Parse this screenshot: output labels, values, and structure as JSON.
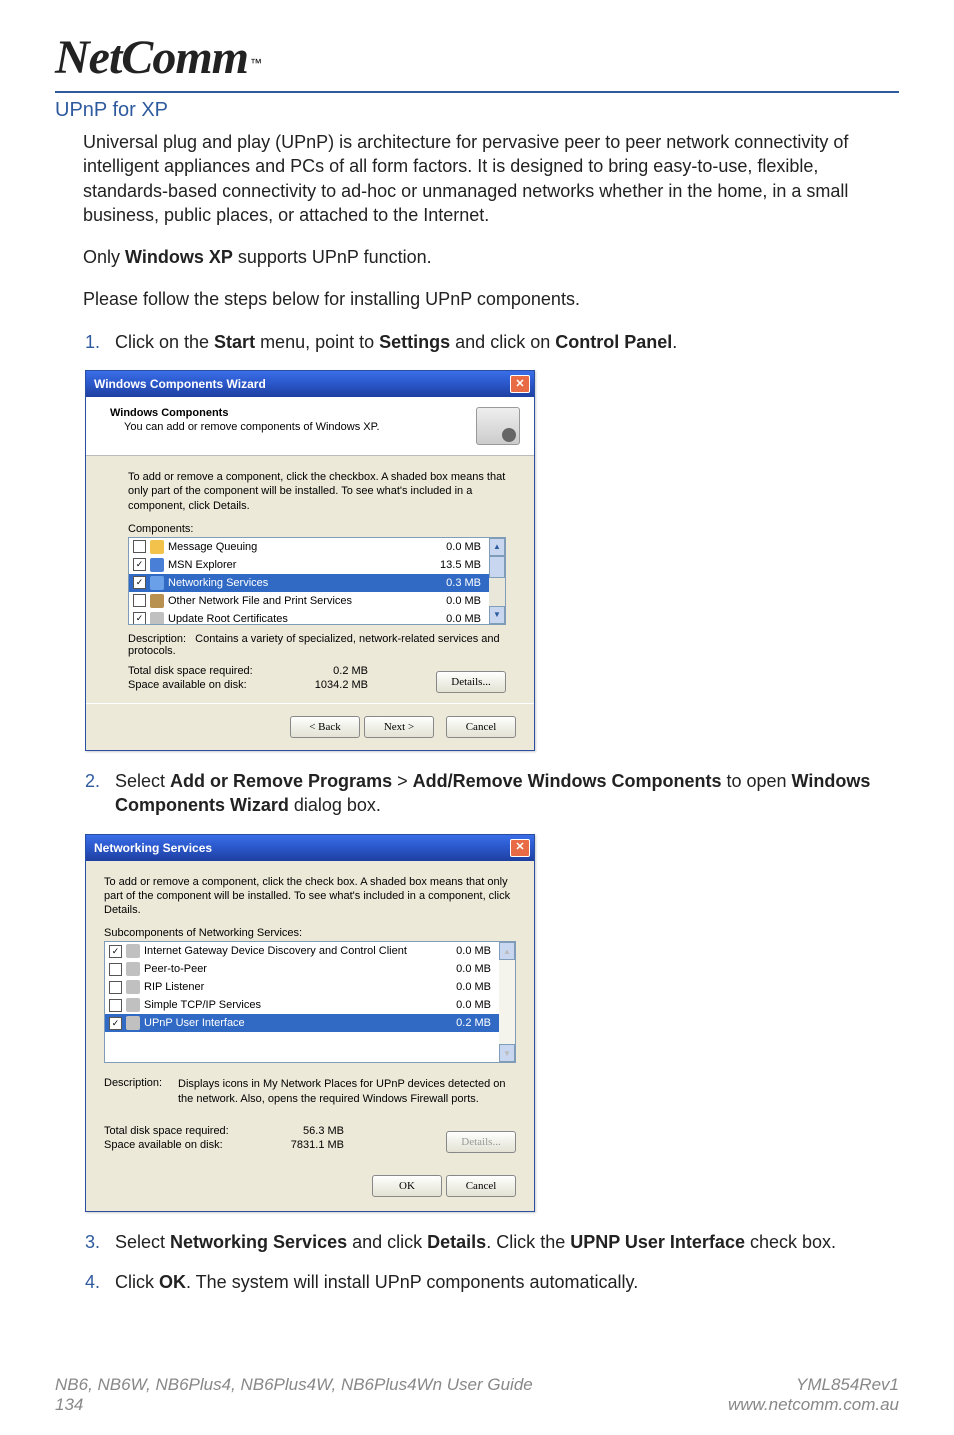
{
  "logo": {
    "text": "NetComm",
    "tm": "™"
  },
  "section_title": "UPnP for XP",
  "intro_para": "Universal plug and play (UPnP) is architecture for pervasive peer to peer network connectivity of intelligent appliances and PCs of all form factors. It is designed to bring easy-to-use, flexible, standards-based connectivity to ad-hoc or unmanaged networks whether in the home, in a small business, public places, or attached to the Internet.",
  "note_prefix": "Only ",
  "note_bold": "Windows XP",
  "note_suffix": " supports UPnP function.",
  "follow": "Please follow the steps below for installing UPnP components.",
  "steps": {
    "1": {
      "num": "1.",
      "pre": "Click on the ",
      "b1": "Start",
      "m1": " menu, point to ",
      "b2": "Settings",
      "m2": " and click on ",
      "b3": "Control Panel",
      "post": "."
    },
    "2": {
      "num": "2.",
      "pre": "Select ",
      "b1": "Add or Remove Programs",
      "m1": " > ",
      "b2": "Add/Remove Windows Components",
      "m2": " to open ",
      "b3": "Windows Components Wizard",
      "post": " dialog box."
    },
    "3": {
      "num": "3.",
      "pre": "Select ",
      "b1": "Networking Services",
      "m1": " and click ",
      "b2": "Details",
      "m2": ". Click the ",
      "b3": "UPNP User Interface",
      "post": " check box."
    },
    "4": {
      "num": "4.",
      "pre": "Click ",
      "b1": "OK",
      "post": ". The system will install UPnP components automatically."
    }
  },
  "dialog1": {
    "title": "Windows Components Wizard",
    "header_title": "Windows Components",
    "header_sub": "You can add or remove components of Windows XP.",
    "instruction": "To add or remove a component, click the checkbox. A shaded box means that only part of the component will be installed. To see what's included in a component, click Details.",
    "components_label": "Components:",
    "items": [
      {
        "checked": false,
        "icon": "#f3c24a",
        "label": "Message Queuing",
        "size": "0.0 MB",
        "selected": false
      },
      {
        "checked": true,
        "icon": "#4a7fd8",
        "label": "MSN Explorer",
        "size": "13.5 MB",
        "selected": false
      },
      {
        "checked": true,
        "icon": "#6aa0e8",
        "label": "Networking Services",
        "size": "0.3 MB",
        "selected": true
      },
      {
        "checked": false,
        "icon": "#b89050",
        "label": "Other Network File and Print Services",
        "size": "0.0 MB",
        "selected": false
      },
      {
        "checked": true,
        "icon": "#c0c0c0",
        "label": "Update Root Certificates",
        "size": "0.0 MB",
        "selected": false
      }
    ],
    "desc_label": "Description:",
    "desc_text": "Contains a variety of specialized, network-related services and protocols.",
    "disk_req_label": "Total disk space required:",
    "disk_req_value": "0.2 MB",
    "disk_avail_label": "Space available on disk:",
    "disk_avail_value": "1034.2 MB",
    "details_btn": "Details...",
    "back_btn": "< Back",
    "next_btn": "Next >",
    "cancel_btn": "Cancel"
  },
  "dialog2": {
    "title": "Networking Services",
    "instruction": "To add or remove a component, click the check box. A shaded box means that only part of the component will be installed. To see what's included in a component, click Details.",
    "sub_label": "Subcomponents of Networking Services:",
    "items": [
      {
        "checked": true,
        "icon": "#c0c0c0",
        "label": "Internet Gateway Device Discovery and Control Client",
        "size": "0.0 MB",
        "selected": false
      },
      {
        "checked": false,
        "icon": "#c0c0c0",
        "label": "Peer-to-Peer",
        "size": "0.0 MB",
        "selected": false
      },
      {
        "checked": false,
        "icon": "#c0c0c0",
        "label": "RIP Listener",
        "size": "0.0 MB",
        "selected": false
      },
      {
        "checked": false,
        "icon": "#c0c0c0",
        "label": "Simple TCP/IP Services",
        "size": "0.0 MB",
        "selected": false
      },
      {
        "checked": true,
        "icon": "#c0c0c0",
        "label": "UPnP User Interface",
        "size": "0.2 MB",
        "selected": true
      }
    ],
    "desc_label": "Description:",
    "desc_text": "Displays icons in My Network Places for UPnP devices detected on the network. Also, opens the required Windows Firewall ports.",
    "disk_req_label": "Total disk space required:",
    "disk_req_value": "56.3 MB",
    "disk_avail_label": "Space available on disk:",
    "disk_avail_value": "7831.1 MB",
    "details_btn": "Details...",
    "ok_btn": "OK",
    "cancel_btn": "Cancel"
  },
  "footer": {
    "left1": "NB6, NB6W, NB6Plus4, NB6Plus4W, NB6Plus4Wn User Guide",
    "left2": "134",
    "right1": "YML854Rev1",
    "right2": "www.netcomm.com.au"
  }
}
